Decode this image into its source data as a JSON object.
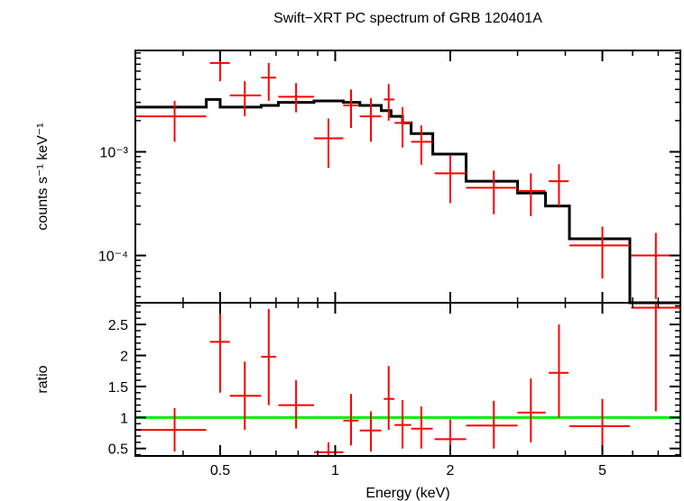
{
  "chart_data": {
    "type": "line",
    "title": "Swift−XRT PC spectrum of GRB 120401A",
    "xlabel": "Energy (keV)",
    "x_scale": "log",
    "xlim": [
      0.3,
      8.0
    ],
    "x_ticks": [
      0.5,
      1,
      2,
      5
    ],
    "x_tick_labels": [
      "0.5",
      "1",
      "2",
      "5"
    ],
    "colors": {
      "data": "#ff0000",
      "model": "#000000",
      "unity": "#00ee00",
      "frame": "#000000"
    },
    "panels": [
      {
        "name": "spectrum",
        "ylabel": "counts s⁻¹ keV⁻¹",
        "y_scale": "log",
        "ylim": [
          3.5e-05,
          0.0095
        ],
        "y_tick_labels": [
          "10⁻³",
          "10⁻⁴"
        ],
        "y_tick_values": [
          0.001,
          0.0001
        ],
        "series": [
          {
            "type": "errorbar",
            "points": [
              {
                "x": 0.38,
                "xlo": 0.3,
                "xhi": 0.46,
                "y": 0.0022,
                "ylo": 0.00125,
                "yhi": 0.0031
              },
              {
                "x": 0.5,
                "xlo": 0.47,
                "xhi": 0.53,
                "y": 0.0072,
                "ylo": 0.0048,
                "yhi": 0.0093
              },
              {
                "x": 0.58,
                "xlo": 0.53,
                "xhi": 0.64,
                "y": 0.0035,
                "ylo": 0.0022,
                "yhi": 0.0048
              },
              {
                "x": 0.67,
                "xlo": 0.64,
                "xhi": 0.7,
                "y": 0.0052,
                "ylo": 0.0031,
                "yhi": 0.0072
              },
              {
                "x": 0.79,
                "xlo": 0.71,
                "xhi": 0.88,
                "y": 0.0034,
                "ylo": 0.0024,
                "yhi": 0.0046
              },
              {
                "x": 0.96,
                "xlo": 0.88,
                "xhi": 1.05,
                "y": 0.00135,
                "ylo": 0.0007,
                "yhi": 0.0021
              },
              {
                "x": 1.1,
                "xlo": 1.05,
                "xhi": 1.15,
                "y": 0.0028,
                "ylo": 0.0017,
                "yhi": 0.004
              },
              {
                "x": 1.24,
                "xlo": 1.16,
                "xhi": 1.32,
                "y": 0.0022,
                "ylo": 0.00125,
                "yhi": 0.0033
              },
              {
                "x": 1.38,
                "xlo": 1.34,
                "xhi": 1.43,
                "y": 0.0032,
                "ylo": 0.002,
                "yhi": 0.0045
              },
              {
                "x": 1.5,
                "xlo": 1.43,
                "xhi": 1.58,
                "y": 0.0019,
                "ylo": 0.0011,
                "yhi": 0.0027
              },
              {
                "x": 1.68,
                "xlo": 1.58,
                "xhi": 1.8,
                "y": 0.00125,
                "ylo": 0.00075,
                "yhi": 0.0018
              },
              {
                "x": 2.0,
                "xlo": 1.82,
                "xhi": 2.2,
                "y": 0.00062,
                "ylo": 0.00032,
                "yhi": 0.00092
              },
              {
                "x": 2.6,
                "xlo": 2.2,
                "xhi": 3.0,
                "y": 0.00045,
                "ylo": 0.00025,
                "yhi": 0.00066
              },
              {
                "x": 3.25,
                "xlo": 3.0,
                "xhi": 3.55,
                "y": 0.00042,
                "ylo": 0.00024,
                "yhi": 0.00062
              },
              {
                "x": 3.85,
                "xlo": 3.62,
                "xhi": 4.08,
                "y": 0.00052,
                "ylo": 0.0003,
                "yhi": 0.00076
              },
              {
                "x": 5.0,
                "xlo": 4.1,
                "xhi": 5.9,
                "y": 0.000125,
                "ylo": 6e-05,
                "yhi": 0.00019
              },
              {
                "x": 6.9,
                "xlo": 5.95,
                "xhi": 8.0,
                "y": 0.0001,
                "ylo": 3.8e-05,
                "yhi": 0.000165
              }
            ]
          },
          {
            "type": "step",
            "x_edges": [
              0.3,
              0.46,
              0.5,
              0.53,
              0.64,
              0.71,
              0.88,
              1.05,
              1.16,
              1.32,
              1.4,
              1.5,
              1.58,
              1.8,
              2.2,
              3.0,
              3.55,
              4.1,
              5.9
            ],
            "values": [
              0.0027,
              0.0032,
              0.0027,
              0.0027,
              0.0028,
              0.003,
              0.0031,
              0.003,
              0.0028,
              0.0025,
              0.0022,
              0.0019,
              0.0015,
              0.00095,
              0.00052,
              0.0004,
              0.0003,
              0.000145,
              2e-05
            ]
          }
        ]
      },
      {
        "name": "ratio",
        "ylabel": "ratio",
        "y_scale": "linear",
        "ylim": [
          0.38,
          2.85
        ],
        "y_ticks": [
          0.5,
          1,
          1.5,
          2,
          2.5
        ],
        "y_tick_labels": [
          "0.5",
          "1",
          "1.5",
          "2",
          "2.5"
        ],
        "unity": 1,
        "series": [
          {
            "type": "errorbar",
            "points": [
              {
                "x": 0.38,
                "xlo": 0.3,
                "xhi": 0.46,
                "y": 0.8,
                "ylo": 0.45,
                "yhi": 1.15
              },
              {
                "x": 0.5,
                "xlo": 0.47,
                "xhi": 0.53,
                "y": 2.22,
                "ylo": 1.4,
                "yhi": 2.85
              },
              {
                "x": 0.58,
                "xlo": 0.53,
                "xhi": 0.64,
                "y": 1.35,
                "ylo": 0.8,
                "yhi": 1.9
              },
              {
                "x": 0.67,
                "xlo": 0.64,
                "xhi": 0.7,
                "y": 1.98,
                "ylo": 1.2,
                "yhi": 2.75
              },
              {
                "x": 0.79,
                "xlo": 0.71,
                "xhi": 0.88,
                "y": 1.2,
                "ylo": 0.82,
                "yhi": 1.6
              },
              {
                "x": 0.96,
                "xlo": 0.88,
                "xhi": 1.05,
                "y": 0.44,
                "ylo": 0.38,
                "yhi": 0.6
              },
              {
                "x": 1.1,
                "xlo": 1.05,
                "xhi": 1.15,
                "y": 0.95,
                "ylo": 0.55,
                "yhi": 1.38
              },
              {
                "x": 1.24,
                "xlo": 1.16,
                "xhi": 1.32,
                "y": 0.79,
                "ylo": 0.45,
                "yhi": 1.1
              },
              {
                "x": 1.38,
                "xlo": 1.34,
                "xhi": 1.43,
                "y": 1.3,
                "ylo": 0.8,
                "yhi": 1.83
              },
              {
                "x": 1.5,
                "xlo": 1.43,
                "xhi": 1.58,
                "y": 0.88,
                "ylo": 0.5,
                "yhi": 1.28
              },
              {
                "x": 1.68,
                "xlo": 1.58,
                "xhi": 1.8,
                "y": 0.82,
                "ylo": 0.5,
                "yhi": 1.18
              },
              {
                "x": 2.0,
                "xlo": 1.82,
                "xhi": 2.2,
                "y": 0.65,
                "ylo": 0.35,
                "yhi": 0.97
              },
              {
                "x": 2.6,
                "xlo": 2.2,
                "xhi": 3.0,
                "y": 0.87,
                "ylo": 0.5,
                "yhi": 1.27
              },
              {
                "x": 3.25,
                "xlo": 3.0,
                "xhi": 3.55,
                "y": 1.08,
                "ylo": 0.6,
                "yhi": 1.63
              },
              {
                "x": 3.85,
                "xlo": 3.62,
                "xhi": 4.08,
                "y": 1.72,
                "ylo": 1.0,
                "yhi": 2.5
              },
              {
                "x": 5.0,
                "xlo": 4.1,
                "xhi": 5.9,
                "y": 0.86,
                "ylo": 0.42,
                "yhi": 1.3
              },
              {
                "x": 6.9,
                "xlo": 5.95,
                "xhi": 8.0,
                "y": 2.77,
                "ylo": 1.1,
                "yhi": 2.85
              }
            ]
          }
        ]
      }
    ]
  }
}
